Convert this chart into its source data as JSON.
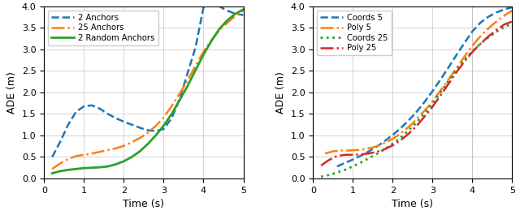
{
  "left": {
    "xlabel": "Time (s)",
    "ylabel": "ADE (m)",
    "xlim": [
      0,
      5
    ],
    "ylim": [
      0.0,
      4.0
    ],
    "yticks": [
      0.0,
      0.5,
      1.0,
      1.5,
      2.0,
      2.5,
      3.0,
      3.5,
      4.0
    ],
    "xticks": [
      0,
      1,
      2,
      3,
      4,
      5
    ],
    "series": [
      {
        "label": "2 Anchors",
        "color": "#1f77b4",
        "linestyle": "--",
        "lw": 1.8,
        "x": [
          0.2,
          0.4,
          0.6,
          0.8,
          1.0,
          1.2,
          1.4,
          1.6,
          1.8,
          2.0,
          2.2,
          2.4,
          2.6,
          2.8,
          3.0,
          3.2,
          3.4,
          3.6,
          3.8,
          4.0,
          4.2,
          4.4,
          4.6,
          4.8,
          5.0
        ],
        "y": [
          0.5,
          0.85,
          1.25,
          1.55,
          1.68,
          1.7,
          1.62,
          1.5,
          1.4,
          1.32,
          1.25,
          1.18,
          1.12,
          1.1,
          1.15,
          1.4,
          1.85,
          2.45,
          3.05,
          3.98,
          4.05,
          4.0,
          3.9,
          3.83,
          3.8
        ]
      },
      {
        "label": "25 Anchors",
        "color": "#ff7f0e",
        "linestyle": "-.",
        "lw": 1.8,
        "x": [
          0.2,
          0.4,
          0.6,
          0.8,
          1.0,
          1.2,
          1.4,
          1.6,
          1.8,
          2.0,
          2.2,
          2.4,
          2.6,
          2.8,
          3.0,
          3.2,
          3.4,
          3.6,
          3.8,
          4.0,
          4.2,
          4.4,
          4.6,
          4.8,
          5.0
        ],
        "y": [
          0.22,
          0.35,
          0.45,
          0.52,
          0.55,
          0.58,
          0.62,
          0.66,
          0.7,
          0.76,
          0.84,
          0.94,
          1.06,
          1.22,
          1.42,
          1.68,
          1.97,
          2.28,
          2.62,
          2.95,
          3.22,
          3.45,
          3.62,
          3.78,
          3.9
        ]
      },
      {
        "label": "2 Random Anchors",
        "color": "#2ca02c",
        "linestyle": "-",
        "lw": 2.0,
        "x": [
          0.2,
          0.4,
          0.6,
          0.8,
          1.0,
          1.2,
          1.4,
          1.6,
          1.8,
          2.0,
          2.2,
          2.4,
          2.6,
          2.8,
          3.0,
          3.2,
          3.4,
          3.6,
          3.8,
          4.0,
          4.2,
          4.4,
          4.6,
          4.8,
          5.0
        ],
        "y": [
          0.12,
          0.17,
          0.2,
          0.22,
          0.24,
          0.25,
          0.26,
          0.28,
          0.33,
          0.4,
          0.5,
          0.63,
          0.8,
          1.0,
          1.23,
          1.5,
          1.82,
          2.15,
          2.52,
          2.88,
          3.2,
          3.48,
          3.68,
          3.83,
          3.93
        ]
      }
    ]
  },
  "right": {
    "xlabel": "Time (s)",
    "ylabel": "ADE (m)",
    "xlim": [
      0,
      5
    ],
    "ylim": [
      0.0,
      4.0
    ],
    "yticks": [
      0.0,
      0.5,
      1.0,
      1.5,
      2.0,
      2.5,
      3.0,
      3.5,
      4.0
    ],
    "xticks": [
      0,
      1,
      2,
      3,
      4,
      5
    ],
    "vline_x": 4.0,
    "series": [
      {
        "label": "Coords 5",
        "color": "#1f77b4",
        "linestyle": "--",
        "lw": 1.8,
        "x": [
          0.6,
          0.8,
          1.0,
          1.2,
          1.4,
          1.6,
          1.8,
          2.0,
          2.2,
          2.4,
          2.6,
          2.8,
          3.0,
          3.2,
          3.4,
          3.6,
          3.8,
          4.0,
          4.2,
          4.4,
          4.6,
          4.8,
          5.0
        ],
        "y": [
          0.28,
          0.36,
          0.44,
          0.53,
          0.63,
          0.74,
          0.87,
          1.01,
          1.17,
          1.35,
          1.55,
          1.78,
          2.03,
          2.3,
          2.58,
          2.87,
          3.15,
          3.42,
          3.62,
          3.76,
          3.86,
          3.93,
          3.98
        ]
      },
      {
        "label": "Poly 5",
        "color": "#ff7f0e",
        "linestyle": "-.",
        "lw": 1.8,
        "x": [
          0.3,
          0.5,
          0.7,
          0.9,
          1.1,
          1.3,
          1.5,
          1.7,
          1.9,
          2.1,
          2.3,
          2.5,
          2.7,
          2.9,
          3.1,
          3.3,
          3.5,
          3.7,
          3.9,
          4.1,
          4.3,
          4.5,
          4.7,
          4.9,
          5.0
        ],
        "y": [
          0.58,
          0.63,
          0.65,
          0.65,
          0.66,
          0.68,
          0.72,
          0.78,
          0.87,
          0.98,
          1.12,
          1.28,
          1.48,
          1.68,
          1.92,
          2.17,
          2.43,
          2.7,
          2.96,
          3.2,
          3.4,
          3.57,
          3.72,
          3.85,
          3.9
        ]
      },
      {
        "label": "Coords 25",
        "color": "#2ca02c",
        "linestyle": ":",
        "lw": 2.0,
        "x": [
          0.2,
          0.4,
          0.6,
          0.8,
          1.0,
          1.2,
          1.4,
          1.6,
          1.8,
          2.0,
          2.2,
          2.4,
          2.6,
          2.8,
          3.0,
          3.2,
          3.4,
          3.6,
          3.8,
          4.0,
          4.2,
          4.4,
          4.6,
          4.8,
          5.0
        ],
        "y": [
          0.04,
          0.08,
          0.14,
          0.2,
          0.28,
          0.37,
          0.47,
          0.57,
          0.68,
          0.81,
          0.95,
          1.12,
          1.3,
          1.52,
          1.75,
          2.0,
          2.27,
          2.53,
          2.76,
          2.96,
          3.13,
          3.28,
          3.41,
          3.52,
          3.6
        ]
      },
      {
        "label": "Poly 25",
        "color": "#d62728",
        "linestyle": "-.",
        "lw": 1.8,
        "x": [
          0.2,
          0.4,
          0.6,
          0.8,
          1.0,
          1.2,
          1.4,
          1.6,
          1.8,
          2.0,
          2.2,
          2.4,
          2.6,
          2.8,
          3.0,
          3.2,
          3.4,
          3.6,
          3.8,
          4.0,
          4.2,
          4.4,
          4.6,
          4.8,
          5.0
        ],
        "y": [
          0.3,
          0.43,
          0.52,
          0.55,
          0.55,
          0.56,
          0.58,
          0.62,
          0.68,
          0.77,
          0.89,
          1.04,
          1.22,
          1.44,
          1.67,
          1.93,
          2.2,
          2.47,
          2.72,
          2.94,
          3.13,
          3.3,
          3.45,
          3.58,
          3.65
        ]
      }
    ]
  }
}
